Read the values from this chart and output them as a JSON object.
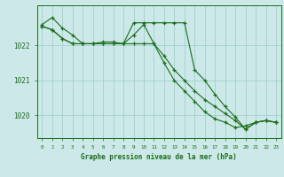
{
  "title": "Graphe pression niveau de la mer (hPa)",
  "background_color": "#cce8e8",
  "grid_color": "#99cccc",
  "line_color": "#1a6e1a",
  "x_labels": [
    "0",
    "1",
    "2",
    "3",
    "4",
    "5",
    "6",
    "7",
    "8",
    "9",
    "10",
    "11",
    "12",
    "13",
    "14",
    "15",
    "16",
    "17",
    "18",
    "19",
    "20",
    "21",
    "22",
    "23"
  ],
  "hours": [
    0,
    1,
    2,
    3,
    4,
    5,
    6,
    7,
    8,
    9,
    10,
    11,
    12,
    13,
    14,
    15,
    16,
    17,
    18,
    19,
    20,
    21,
    22,
    23
  ],
  "line1": [
    1022.6,
    1022.8,
    1022.5,
    1022.3,
    1022.05,
    1022.05,
    1022.1,
    1022.1,
    1022.05,
    1022.3,
    1022.6,
    1022.05,
    1021.5,
    1021.0,
    1020.7,
    1020.4,
    1020.1,
    1019.9,
    1019.8,
    1019.65,
    1019.7,
    1019.8,
    1019.85,
    1019.8
  ],
  "line2": [
    1022.55,
    1022.45,
    1022.2,
    1022.05,
    1022.05,
    1022.05,
    1022.05,
    1022.05,
    1022.05,
    1022.05,
    1022.05,
    1022.05,
    1021.7,
    1021.3,
    1021.0,
    1020.7,
    1020.45,
    1020.25,
    1020.05,
    1019.85,
    1019.6,
    1019.8,
    1019.85,
    1019.8
  ],
  "line3": [
    1022.55,
    1022.45,
    1022.2,
    1022.05,
    1022.05,
    1022.05,
    1022.05,
    1022.05,
    1022.05,
    1022.65,
    1022.65,
    1022.65,
    1022.65,
    1022.65,
    1022.65,
    1021.3,
    1021.0,
    1020.6,
    1020.25,
    1019.95,
    1019.6,
    1019.8,
    1019.85,
    1019.8
  ],
  "ylim_min": 1019.35,
  "ylim_max": 1023.15,
  "yticks": [
    1020,
    1021,
    1022
  ]
}
